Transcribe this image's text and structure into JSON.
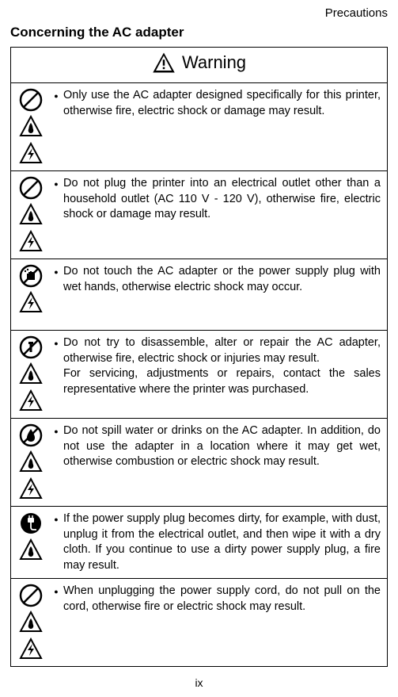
{
  "header": {
    "right": "Precautions"
  },
  "section_title": "Concerning the AC adapter",
  "warning_label": "Warning",
  "colors": {
    "text": "#000000",
    "background": "#ffffff",
    "border": "#000000"
  },
  "rows": [
    {
      "icons": [
        "prohibit",
        "fire",
        "shock"
      ],
      "text": "Only use the AC adapter designed specifically for this printer, otherwise fire, electric shock or damage may result."
    },
    {
      "icons": [
        "prohibit",
        "fire",
        "shock"
      ],
      "text": "Do not plug the printer into an electrical outlet other than a household outlet (AC 110 V - 120 V), otherwise fire, electric shock or damage may result."
    },
    {
      "icons": [
        "wet-hand",
        "shock"
      ],
      "text": "Do not touch the AC adapter or the power supply plug with wet hands, otherwise electric shock may occur."
    },
    {
      "icons": [
        "disassemble",
        "fire",
        "shock"
      ],
      "text": "Do not try to disassemble, alter or repair the AC adapter, otherwise fire, electric shock or injuries may result.\nFor servicing, adjustments or repairs, contact the sales representative where the printer was purchased."
    },
    {
      "icons": [
        "water",
        "fire",
        "shock"
      ],
      "text": "Do not spill water or drinks on the AC adapter. In addition, do not use the adapter in a location where it may get wet, otherwise combustion or electric shock may result."
    },
    {
      "icons": [
        "unplug",
        "fire"
      ],
      "text": "If the power supply plug becomes dirty, for example, with dust, unplug it from the electrical outlet, and then wipe it with a dry cloth. If you continue to use a dirty power supply plug, a fire may result."
    },
    {
      "icons": [
        "prohibit",
        "fire",
        "shock"
      ],
      "text": "When unplugging the power supply cord, do not pull on the cord, otherwise fire or electric shock may result."
    }
  ],
  "page_number": "ix"
}
